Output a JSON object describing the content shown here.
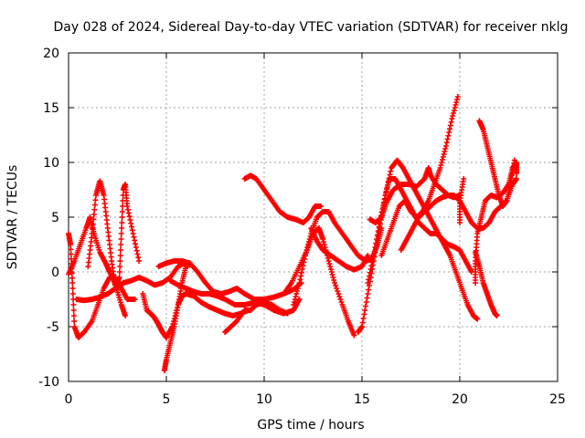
{
  "chart_data": {
    "type": "scatter",
    "title": "Day 028 of 2024, Sidereal Day-to-day VTEC variation (SDTVAR) for receiver nklg",
    "xlabel": "GPS time / hours",
    "ylabel": "SDTVAR / TECUs",
    "xlim": [
      0,
      25
    ],
    "ylim": [
      -10,
      20
    ],
    "x_ticks": [
      0,
      5,
      10,
      15,
      20,
      25
    ],
    "x_tick_labels": [
      "0",
      "5",
      "10",
      "15",
      "20",
      "25"
    ],
    "y_ticks": [
      -10,
      -5,
      0,
      5,
      10,
      15,
      20
    ],
    "y_tick_labels": [
      "-10",
      "-5",
      "0",
      "5",
      "10",
      "15",
      "20"
    ],
    "grid": true,
    "marker": "+",
    "color": "#ff0000",
    "series": [
      {
        "name": "s1",
        "points": [
          [
            0.0,
            -0.2
          ],
          [
            0.3,
            1.0
          ],
          [
            0.6,
            2.5
          ],
          [
            0.9,
            4.0
          ],
          [
            1.1,
            5.0
          ],
          [
            1.3,
            3.5
          ],
          [
            1.6,
            1.8
          ],
          [
            1.9,
            0.8
          ],
          [
            2.1,
            0.0
          ],
          [
            2.4,
            -1.2
          ],
          [
            2.7,
            -3.0
          ],
          [
            2.9,
            -4.0
          ]
        ]
      },
      {
        "name": "s2",
        "points": [
          [
            0.0,
            3.5
          ],
          [
            0.1,
            2.5
          ],
          [
            0.2,
            -1.0
          ],
          [
            0.3,
            -5.0
          ],
          [
            0.5,
            -6.0
          ],
          [
            0.8,
            -5.5
          ],
          [
            1.2,
            -4.5
          ],
          [
            1.5,
            -3.0
          ],
          [
            1.8,
            -1.5
          ],
          [
            2.1,
            -0.5
          ],
          [
            2.4,
            -0.5
          ],
          [
            2.7,
            -1.5
          ],
          [
            3.0,
            -2.5
          ],
          [
            3.4,
            -2.5
          ]
        ]
      },
      {
        "name": "s3",
        "points": [
          [
            0.4,
            -2.5
          ],
          [
            0.8,
            -2.6
          ],
          [
            1.2,
            -2.5
          ],
          [
            1.6,
            -2.3
          ],
          [
            2.0,
            -2.0
          ],
          [
            2.4,
            -1.5
          ],
          [
            2.8,
            -1.0
          ],
          [
            3.2,
            -0.8
          ],
          [
            3.6,
            -0.5
          ],
          [
            4.0,
            -0.8
          ],
          [
            4.4,
            -1.2
          ],
          [
            4.8,
            -1.0
          ],
          [
            5.2,
            -0.5
          ],
          [
            5.6,
            0.5
          ],
          [
            5.9,
            0.8
          ],
          [
            6.2,
            0.6
          ]
        ]
      },
      {
        "name": "s4",
        "points": [
          [
            1.0,
            0.5
          ],
          [
            1.2,
            3.5
          ],
          [
            1.4,
            7.0
          ],
          [
            1.6,
            8.3
          ],
          [
            1.8,
            7.0
          ],
          [
            2.0,
            4.0
          ],
          [
            2.2,
            1.0
          ],
          [
            2.4,
            -1.5
          ],
          [
            2.6,
            -0.5
          ],
          [
            2.7,
            3.5
          ],
          [
            2.8,
            7.5
          ],
          [
            2.9,
            8.0
          ],
          [
            3.0,
            6.0
          ],
          [
            3.3,
            3.5
          ],
          [
            3.6,
            1.0
          ]
        ]
      },
      {
        "name": "s5",
        "points": [
          [
            3.8,
            -2.0
          ],
          [
            4.0,
            -3.5
          ],
          [
            4.2,
            -3.8
          ],
          [
            4.4,
            -4.2
          ],
          [
            4.6,
            -4.8
          ],
          [
            4.8,
            -5.5
          ],
          [
            5.0,
            -6.0
          ],
          [
            5.3,
            -5.0
          ],
          [
            5.6,
            -3.0
          ],
          [
            5.8,
            -1.0
          ],
          [
            6.0,
            0.5
          ],
          [
            6.2,
            0.8
          ]
        ]
      },
      {
        "name": "s6",
        "points": [
          [
            4.9,
            -9.0
          ],
          [
            5.0,
            -8.0
          ],
          [
            5.2,
            -6.5
          ],
          [
            5.4,
            -5.0
          ],
          [
            5.6,
            -3.0
          ],
          [
            5.8,
            -2.2
          ],
          [
            6.0,
            -2.0
          ],
          [
            6.4,
            -2.2
          ],
          [
            6.8,
            -2.8
          ],
          [
            7.2,
            -3.2
          ],
          [
            7.6,
            -3.5
          ],
          [
            8.0,
            -3.8
          ],
          [
            8.4,
            -4.0
          ],
          [
            8.8,
            -3.8
          ],
          [
            9.2,
            -3.5
          ]
        ]
      },
      {
        "name": "s7",
        "points": [
          [
            4.6,
            0.5
          ],
          [
            5.0,
            0.8
          ],
          [
            5.4,
            1.0
          ],
          [
            5.8,
            1.0
          ],
          [
            6.2,
            0.8
          ],
          [
            6.6,
            0.0
          ],
          [
            7.0,
            -1.0
          ],
          [
            7.4,
            -1.8
          ],
          [
            7.8,
            -2.0
          ],
          [
            8.2,
            -1.8
          ],
          [
            8.6,
            -1.5
          ],
          [
            9.0,
            -2.0
          ],
          [
            9.5,
            -2.5
          ],
          [
            10.0,
            -2.5
          ],
          [
            10.5,
            -2.3
          ],
          [
            11.0,
            -2.0
          ],
          [
            11.5,
            -1.6
          ],
          [
            11.9,
            -1.0
          ]
        ]
      },
      {
        "name": "s8",
        "points": [
          [
            5.2,
            -0.8
          ],
          [
            5.6,
            -1.2
          ],
          [
            6.0,
            -1.5
          ],
          [
            6.4,
            -1.8
          ],
          [
            6.8,
            -2.0
          ],
          [
            7.2,
            -2.0
          ],
          [
            7.6,
            -2.2
          ],
          [
            8.0,
            -2.5
          ],
          [
            8.5,
            -3.0
          ],
          [
            9.0,
            -3.0
          ],
          [
            9.5,
            -2.8
          ],
          [
            10.0,
            -3.0
          ],
          [
            10.5,
            -3.5
          ],
          [
            11.0,
            -3.8
          ],
          [
            11.5,
            -3.5
          ],
          [
            11.8,
            -2.5
          ]
        ]
      },
      {
        "name": "s9",
        "points": [
          [
            8.0,
            -5.5
          ],
          [
            8.3,
            -5.0
          ],
          [
            8.6,
            -4.5
          ],
          [
            9.0,
            -3.5
          ],
          [
            9.3,
            -3.5
          ],
          [
            9.6,
            -3.0
          ],
          [
            10.0,
            -2.8
          ],
          [
            10.4,
            -3.0
          ],
          [
            10.8,
            -3.5
          ],
          [
            11.2,
            -3.8
          ]
        ]
      },
      {
        "name": "s10",
        "points": [
          [
            9.0,
            8.5
          ],
          [
            9.3,
            8.8
          ],
          [
            9.6,
            8.5
          ],
          [
            10.0,
            7.5
          ],
          [
            10.4,
            6.5
          ],
          [
            10.8,
            5.5
          ],
          [
            11.2,
            5.0
          ],
          [
            11.6,
            4.8
          ],
          [
            12.0,
            4.5
          ],
          [
            12.3,
            5.0
          ],
          [
            12.6,
            6.0
          ],
          [
            12.9,
            6.0
          ]
        ]
      },
      {
        "name": "s11",
        "points": [
          [
            11.0,
            -2.0
          ],
          [
            11.4,
            -1.0
          ],
          [
            11.8,
            0.5
          ],
          [
            12.2,
            2.0
          ],
          [
            12.5,
            3.5
          ],
          [
            12.8,
            4.0
          ],
          [
            13.0,
            3.0
          ],
          [
            13.3,
            1.0
          ],
          [
            13.6,
            -1.0
          ],
          [
            14.0,
            -3.0
          ],
          [
            14.3,
            -4.5
          ],
          [
            14.6,
            -5.8
          ]
        ]
      },
      {
        "name": "s12",
        "points": [
          [
            11.5,
            -3.0
          ],
          [
            11.8,
            -1.0
          ],
          [
            12.1,
            1.5
          ],
          [
            12.4,
            3.5
          ],
          [
            12.7,
            5.0
          ],
          [
            13.0,
            5.5
          ],
          [
            13.3,
            5.5
          ],
          [
            13.6,
            4.5
          ],
          [
            14.0,
            3.5
          ],
          [
            14.4,
            2.5
          ],
          [
            14.8,
            1.5
          ],
          [
            15.2,
            1.0
          ],
          [
            15.5,
            1.2
          ],
          [
            15.8,
            2.5
          ],
          [
            16.0,
            4.0
          ]
        ]
      },
      {
        "name": "s13",
        "points": [
          [
            12.4,
            4.0
          ],
          [
            12.7,
            2.8
          ],
          [
            13.0,
            2.0
          ],
          [
            13.4,
            1.5
          ],
          [
            13.8,
            1.0
          ],
          [
            14.2,
            0.5
          ],
          [
            14.6,
            0.2
          ],
          [
            15.0,
            0.5
          ],
          [
            15.3,
            1.5
          ]
        ]
      },
      {
        "name": "s14",
        "points": [
          [
            14.8,
            -5.5
          ],
          [
            15.0,
            -5.0
          ],
          [
            15.3,
            -2.0
          ],
          [
            15.6,
            1.0
          ],
          [
            15.9,
            4.0
          ],
          [
            16.2,
            7.0
          ],
          [
            16.5,
            9.5
          ],
          [
            16.8,
            10.2
          ],
          [
            17.1,
            9.5
          ],
          [
            17.4,
            8.5
          ],
          [
            17.7,
            7.5
          ],
          [
            18.0,
            6.5
          ],
          [
            18.3,
            5.5
          ],
          [
            18.6,
            4.5
          ],
          [
            18.9,
            3.5
          ],
          [
            19.2,
            2.5
          ],
          [
            19.5,
            1.5
          ],
          [
            19.8,
            0.0
          ],
          [
            20.1,
            -1.5
          ],
          [
            20.4,
            -3.0
          ],
          [
            20.7,
            -4.0
          ],
          [
            20.9,
            -4.3
          ]
        ]
      },
      {
        "name": "s15",
        "points": [
          [
            15.3,
            -1.0
          ],
          [
            15.6,
            1.5
          ],
          [
            15.9,
            4.5
          ],
          [
            16.2,
            7.0
          ],
          [
            16.4,
            8.5
          ],
          [
            16.7,
            8.5
          ],
          [
            17.0,
            7.5
          ],
          [
            17.3,
            6.5
          ],
          [
            17.6,
            5.5
          ],
          [
            17.9,
            4.5
          ],
          [
            18.2,
            4.0
          ],
          [
            18.5,
            3.5
          ],
          [
            18.8,
            3.5
          ],
          [
            19.1,
            3.0
          ],
          [
            19.4,
            2.5
          ],
          [
            19.7,
            2.3
          ],
          [
            20.0,
            2.0
          ],
          [
            20.3,
            1.0
          ],
          [
            20.6,
            0.0
          ]
        ]
      },
      {
        "name": "s16",
        "points": [
          [
            15.4,
            4.8
          ],
          [
            15.7,
            4.5
          ],
          [
            16.0,
            5.0
          ],
          [
            16.3,
            6.5
          ],
          [
            16.6,
            7.5
          ],
          [
            17.0,
            8.0
          ],
          [
            17.4,
            8.0
          ],
          [
            17.8,
            7.8
          ],
          [
            18.2,
            8.5
          ],
          [
            18.4,
            9.5
          ],
          [
            18.5,
            8.8
          ],
          [
            18.8,
            8.0
          ],
          [
            19.1,
            7.5
          ],
          [
            19.4,
            7.0
          ],
          [
            19.7,
            6.8
          ],
          [
            20.0,
            7.0
          ]
        ]
      },
      {
        "name": "s17",
        "points": [
          [
            16.0,
            1.5
          ],
          [
            16.3,
            3.0
          ],
          [
            16.6,
            4.5
          ],
          [
            16.9,
            6.0
          ],
          [
            17.2,
            6.5
          ],
          [
            17.5,
            5.5
          ],
          [
            17.8,
            5.0
          ],
          [
            18.1,
            5.5
          ],
          [
            18.4,
            6.5
          ],
          [
            18.7,
            8.0
          ],
          [
            19.0,
            9.5
          ],
          [
            19.3,
            11.5
          ],
          [
            19.6,
            14.0
          ],
          [
            19.9,
            16.0
          ]
        ]
      },
      {
        "name": "s18",
        "points": [
          [
            17.0,
            2.0
          ],
          [
            17.3,
            3.0
          ],
          [
            17.6,
            4.0
          ],
          [
            17.9,
            5.0
          ],
          [
            18.2,
            5.5
          ],
          [
            18.5,
            6.0
          ],
          [
            18.8,
            6.5
          ],
          [
            19.1,
            6.8
          ],
          [
            19.4,
            7.0
          ],
          [
            19.7,
            7.0
          ],
          [
            20.0,
            6.5
          ],
          [
            20.3,
            5.5
          ],
          [
            20.6,
            4.5
          ],
          [
            20.9,
            4.0
          ],
          [
            21.2,
            4.0
          ],
          [
            21.5,
            4.5
          ],
          [
            21.8,
            5.5
          ],
          [
            22.1,
            6.0
          ],
          [
            22.4,
            6.5
          ],
          [
            22.7,
            8.0
          ],
          [
            22.9,
            8.5
          ]
        ]
      },
      {
        "name": "s19",
        "points": [
          [
            20.0,
            4.5
          ],
          [
            20.0,
            6.5
          ],
          [
            20.2,
            8.5
          ]
        ]
      },
      {
        "name": "s20",
        "points": [
          [
            20.8,
            -1.0
          ],
          [
            20.8,
            1.0
          ],
          [
            20.9,
            3.5
          ],
          [
            21.1,
            5.0
          ],
          [
            21.3,
            6.5
          ],
          [
            21.6,
            7.0
          ],
          [
            21.9,
            6.8
          ],
          [
            22.2,
            7.2
          ],
          [
            22.5,
            8.0
          ],
          [
            22.7,
            9.5
          ],
          [
            22.9,
            10.0
          ],
          [
            22.9,
            9.0
          ]
        ]
      },
      {
        "name": "s21",
        "points": [
          [
            21.0,
            13.8
          ],
          [
            21.2,
            13.0
          ],
          [
            21.4,
            11.5
          ],
          [
            21.6,
            10.0
          ],
          [
            21.8,
            8.5
          ],
          [
            22.0,
            7.0
          ],
          [
            22.2,
            6.0
          ],
          [
            22.4,
            6.5
          ],
          [
            22.6,
            8.0
          ],
          [
            22.8,
            10.2
          ]
        ]
      },
      {
        "name": "s22",
        "points": [
          [
            20.8,
            1.8
          ],
          [
            21.0,
            0.5
          ],
          [
            21.2,
            -1.0
          ],
          [
            21.4,
            -2.0
          ],
          [
            21.6,
            -3.0
          ],
          [
            21.8,
            -3.8
          ],
          [
            21.9,
            -4.0
          ]
        ]
      }
    ]
  }
}
